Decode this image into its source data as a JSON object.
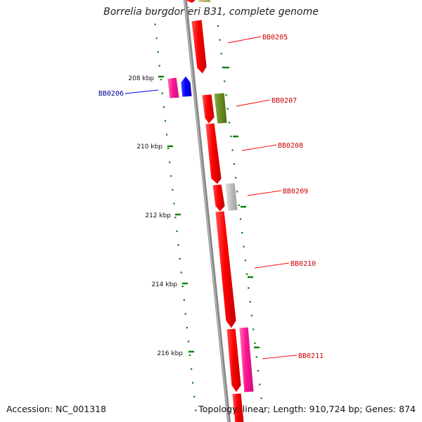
{
  "header": {
    "title": "Borrelia burgdorferi B31, complete genome"
  },
  "footer": {
    "accession_label": "Accession:",
    "accession": "NC_001318",
    "topology_label": "Topology:",
    "topology": "linear;",
    "length_label": "Length:",
    "length": "910,724 bp;",
    "genes_label": "Genes:",
    "genes": "874"
  },
  "ticks": [
    {
      "label": "208 kbp"
    },
    {
      "label": "210 kbp"
    },
    {
      "label": "212 kbp"
    },
    {
      "label": "214 kbp"
    },
    {
      "label": "216 kbp"
    }
  ],
  "genes": [
    {
      "name": "BB0205",
      "strand": "reverse",
      "color": "#ff0000",
      "label_color": "#cc0000"
    },
    {
      "name": "BB0206",
      "strand": "forward",
      "color": "#0000ff",
      "label_color": "#000099"
    },
    {
      "name": "BB0207",
      "strand": "reverse",
      "color": "#ff0000",
      "label_color": "#cc0000"
    },
    {
      "name": "BB0208",
      "strand": "reverse",
      "color": "#ff0000",
      "label_color": "#cc0000"
    },
    {
      "name": "BB0209",
      "strand": "reverse",
      "color": "#ff0000",
      "label_color": "#cc0000"
    },
    {
      "name": "BB0210",
      "strand": "reverse",
      "color": "#ff0000",
      "label_color": "#cc0000"
    },
    {
      "name": "BB0211",
      "strand": "reverse",
      "color": "#ff0000",
      "label_color": "#cc0000"
    }
  ],
  "colors": {
    "backbone": "#888888",
    "tick": "#008000",
    "olive_feature": "#6b8e23",
    "grey_feature": "#c0c0c0",
    "pink_feature": "#ff1493"
  }
}
